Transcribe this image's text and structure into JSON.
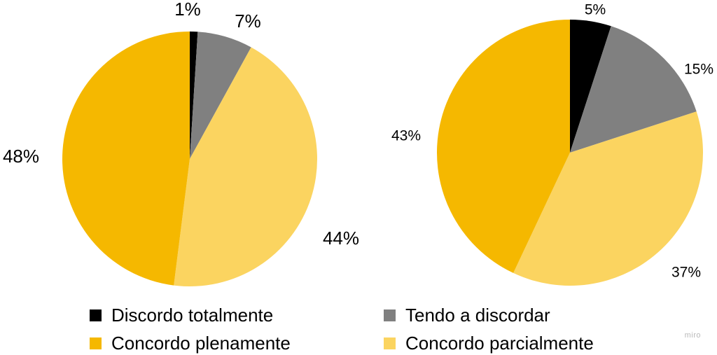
{
  "chart_data": [
    {
      "type": "pie",
      "slices": [
        {
          "label": "Discordo totalmente",
          "value": 1,
          "display": "1%"
        },
        {
          "label": "Tendo a discordar",
          "value": 7,
          "display": "7%"
        },
        {
          "label": "Concordo parcialmente",
          "value": 44,
          "display": "44%"
        },
        {
          "label": "Concordo plenamente",
          "value": 48,
          "display": "48%"
        }
      ]
    },
    {
      "type": "pie",
      "slices": [
        {
          "label": "Discordo totalmente",
          "value": 5,
          "display": "5%"
        },
        {
          "label": "Tendo a discordar",
          "value": 15,
          "display": "15%"
        },
        {
          "label": "Concordo parcialmente",
          "value": 37,
          "display": "37%"
        },
        {
          "label": "Concordo plenamente",
          "value": 43,
          "display": "43%"
        }
      ]
    }
  ],
  "legend": {
    "placement": "bottom",
    "items": [
      {
        "label": "Discordo totalmente",
        "color": "#000000"
      },
      {
        "label": "Tendo a discordar",
        "color": "#808080"
      },
      {
        "label": "Concordo plenamente",
        "color": "#F5B800"
      },
      {
        "label": "Concordo parcialmente",
        "color": "#FBD460"
      }
    ]
  },
  "colors": {
    "Discordo totalmente": "#000000",
    "Tendo a discordar": "#808080",
    "Concordo parcialmente": "#FBD460",
    "Concordo plenamente": "#F5B800"
  },
  "watermark": "miro"
}
